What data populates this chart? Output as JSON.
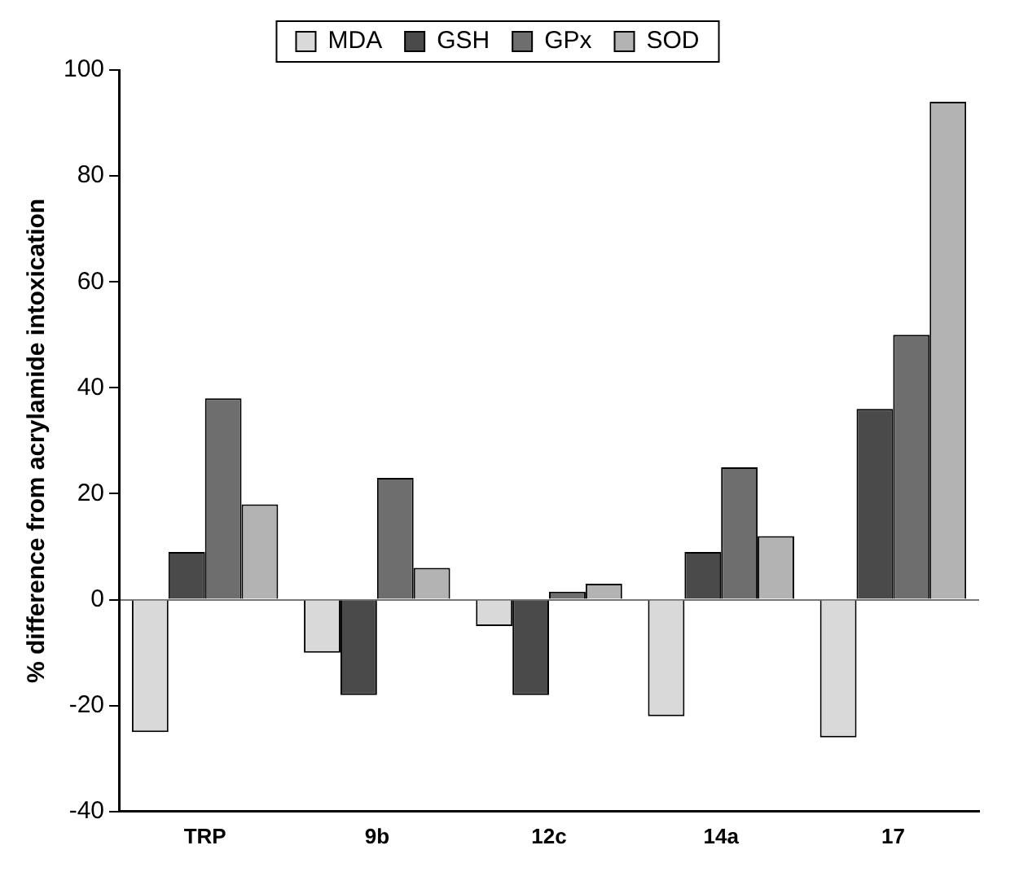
{
  "chart_data": {
    "type": "bar",
    "ylabel": "% difference from acrylamide intoxication",
    "categories": [
      "TRP",
      "9b",
      "12c",
      "14a",
      "17"
    ],
    "series": [
      {
        "name": "MDA",
        "color": "#d9d9d9",
        "values": [
          -25,
          -10,
          -5,
          -22,
          -26
        ]
      },
      {
        "name": "GSH",
        "color": "#4a4a4a",
        "values": [
          9,
          -18,
          -18,
          9,
          36
        ]
      },
      {
        "name": "GPx",
        "color": "#6e6e6e",
        "values": [
          38,
          23,
          1.5,
          25,
          50
        ]
      },
      {
        "name": "SOD",
        "color": "#b3b3b3",
        "values": [
          18,
          6,
          3,
          12,
          94
        ]
      }
    ],
    "ylim": [
      -40,
      100
    ],
    "yticks": [
      -40,
      -20,
      0,
      20,
      40,
      60,
      80,
      100
    ],
    "legend": "top"
  }
}
